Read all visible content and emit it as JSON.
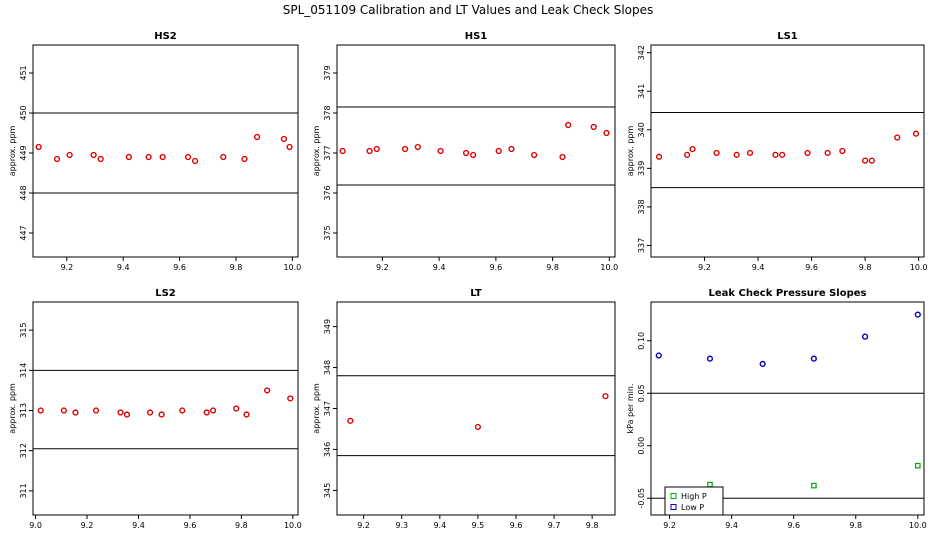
{
  "title": "SPL_051109  Calibration and LT Values and Leak Check Slopes",
  "colors": {
    "red": "#dd0000",
    "blue": "#0000bb",
    "green": "#00aa00",
    "axis": "#000000"
  },
  "chart_data": [
    {
      "id": "hs2",
      "type": "scatter",
      "title": "HS2",
      "ylabel": "approx. ppm",
      "xlim": [
        9.08,
        10.02
      ],
      "ylim": [
        446.4,
        451.7
      ],
      "xticks": [
        "9.2",
        "9.4",
        "9.6",
        "9.8",
        "10.0"
      ],
      "yticks": [
        "447",
        "448",
        "449",
        "450",
        "451"
      ],
      "hlines": [
        450.0,
        448.0
      ],
      "series": [
        {
          "name": "HS2",
          "color": "red",
          "x": [
            9.1,
            9.165,
            9.21,
            9.295,
            9.32,
            9.42,
            9.49,
            9.54,
            9.63,
            9.655,
            9.755,
            9.83,
            9.875,
            9.97,
            9.99
          ],
          "y": [
            449.15,
            448.85,
            448.95,
            448.95,
            448.85,
            448.9,
            448.9,
            448.9,
            448.9,
            448.8,
            448.9,
            448.85,
            449.4,
            449.35,
            449.15
          ]
        }
      ]
    },
    {
      "id": "hs1",
      "type": "scatter",
      "title": "HS1",
      "ylabel": "approx. ppm",
      "xlim": [
        9.04,
        10.02
      ],
      "ylim": [
        374.4,
        379.7
      ],
      "xticks": [
        "9.2",
        "9.4",
        "9.6",
        "9.8",
        "10.0"
      ],
      "yticks": [
        "375",
        "376",
        "377",
        "378",
        "379"
      ],
      "hlines": [
        378.15,
        376.2
      ],
      "series": [
        {
          "name": "HS1",
          "color": "red",
          "x": [
            9.06,
            9.155,
            9.18,
            9.28,
            9.325,
            9.405,
            9.495,
            9.52,
            9.61,
            9.655,
            9.735,
            9.835,
            9.855,
            9.945,
            9.99
          ],
          "y": [
            377.05,
            377.05,
            377.1,
            377.1,
            377.15,
            377.05,
            377.0,
            376.95,
            377.05,
            377.1,
            376.95,
            376.9,
            377.7,
            377.65,
            377.5
          ]
        }
      ]
    },
    {
      "id": "ls1",
      "type": "scatter",
      "title": "LS1",
      "ylabel": "approx. ppm",
      "xlim": [
        9.0,
        10.02
      ],
      "ylim": [
        336.7,
        342.2
      ],
      "xticks": [
        "9.2",
        "9.4",
        "9.6",
        "9.8",
        "10.0"
      ],
      "yticks": [
        "337",
        "338",
        "339",
        "340",
        "341",
        "342"
      ],
      "hlines": [
        340.45,
        338.5
      ],
      "series": [
        {
          "name": "LS1",
          "color": "red",
          "x": [
            9.03,
            9.135,
            9.155,
            9.245,
            9.32,
            9.37,
            9.465,
            9.49,
            9.585,
            9.66,
            9.715,
            9.8,
            9.825,
            9.92,
            9.99
          ],
          "y": [
            339.3,
            339.35,
            339.5,
            339.4,
            339.35,
            339.4,
            339.35,
            339.35,
            339.4,
            339.4,
            339.45,
            339.2,
            339.2,
            339.8,
            339.9
          ]
        }
      ]
    },
    {
      "id": "ls2",
      "type": "scatter",
      "title": "LS2",
      "ylabel": "approx. ppm",
      "xlim": [
        8.99,
        10.02
      ],
      "ylim": [
        310.4,
        315.7
      ],
      "xticks": [
        "9.0",
        "9.2",
        "9.4",
        "9.6",
        "9.8",
        "10.0"
      ],
      "yticks": [
        "311",
        "312",
        "313",
        "314",
        "315"
      ],
      "hlines": [
        314.0,
        312.05
      ],
      "series": [
        {
          "name": "LS2",
          "color": "red",
          "x": [
            9.02,
            9.11,
            9.155,
            9.235,
            9.33,
            9.355,
            9.445,
            9.49,
            9.57,
            9.665,
            9.69,
            9.78,
            9.82,
            9.9,
            9.99
          ],
          "y": [
            313.0,
            313.0,
            312.95,
            313.0,
            312.95,
            312.9,
            312.95,
            312.9,
            313.0,
            312.95,
            313.0,
            313.05,
            312.9,
            313.5,
            313.3
          ]
        }
      ]
    },
    {
      "id": "lt",
      "type": "scatter",
      "title": "LT",
      "ylabel": "approx. ppm",
      "xlim": [
        9.13,
        9.86
      ],
      "ylim": [
        344.4,
        349.6
      ],
      "xticks": [
        "9.2",
        "9.3",
        "9.4",
        "9.5",
        "9.6",
        "9.7",
        "9.8"
      ],
      "yticks": [
        "345",
        "346",
        "347",
        "348",
        "349"
      ],
      "hlines": [
        347.8,
        345.85
      ],
      "series": [
        {
          "name": "LT",
          "color": "red",
          "x": [
            9.165,
            9.5,
            9.835
          ],
          "y": [
            346.7,
            346.55,
            347.3
          ]
        }
      ]
    },
    {
      "id": "leak",
      "type": "scatter",
      "title": "Leak Check Pressure Slopes",
      "ylabel": "kPa per min.",
      "xlim": [
        9.14,
        10.02
      ],
      "ylim": [
        -0.066,
        0.137
      ],
      "xticks": [
        "9.2",
        "9.4",
        "9.6",
        "9.8",
        "10.0"
      ],
      "yticks": [
        "-0.05",
        "0.00",
        "0.05",
        "0.10"
      ],
      "hlines": [
        0.05,
        -0.05
      ],
      "legend": {
        "position": "bottom-left",
        "entries": [
          "High P",
          "Low P"
        ]
      },
      "series": [
        {
          "name": "High P",
          "color": "green",
          "x": [
            9.33,
            9.665,
            10.0
          ],
          "y": [
            -0.037,
            -0.038,
            -0.019
          ]
        },
        {
          "name": "Low P",
          "color": "blue",
          "x": [
            9.165,
            9.33,
            9.5,
            9.665,
            9.83,
            10.0
          ],
          "y": [
            0.086,
            0.083,
            0.078,
            0.083,
            0.104,
            0.125
          ]
        }
      ]
    }
  ]
}
